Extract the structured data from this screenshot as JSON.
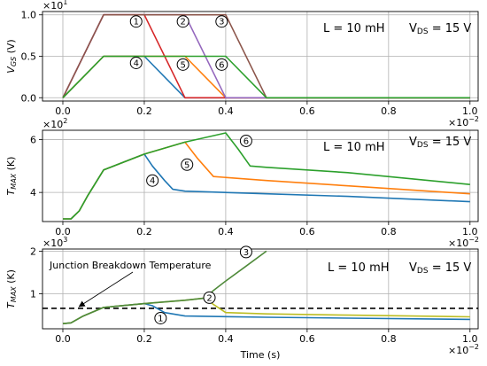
{
  "chart_data": [
    {
      "type": "line",
      "xlim": [
        -0.05,
        1.02
      ],
      "ylim": [
        -0.4,
        10.4
      ],
      "x_ticks": [
        0.0,
        0.2,
        0.4,
        0.6,
        0.8,
        1.0
      ],
      "x_tick_labels": [
        "0.0",
        "0.2",
        "0.4",
        "0.6",
        "0.8",
        "1.0"
      ],
      "x_exponent": "×10−2",
      "y_ticks": [
        0,
        5,
        10
      ],
      "y_tick_labels": [
        "0.0",
        "0.5",
        "1.0"
      ],
      "y_exponent": "×101",
      "ylabel_main": "V",
      "ylabel_sub": "GS",
      "ylabel_unit": " (V)",
      "grid": true,
      "annotations": [
        {
          "text": "L = 10 mH"
        },
        {
          "text_main": "V",
          "text_sub": "DS",
          "text_rest": " = 15 V"
        }
      ],
      "markers": [
        {
          "label": "1",
          "x": 0.18,
          "y": 9.2
        },
        {
          "label": "2",
          "x": 0.295,
          "y": 9.2
        },
        {
          "label": "3",
          "x": 0.39,
          "y": 9.2
        },
        {
          "label": "4",
          "x": 0.18,
          "y": 4.2
        },
        {
          "label": "5",
          "x": 0.295,
          "y": 4.0
        },
        {
          "label": "6",
          "x": 0.39,
          "y": 4.0
        }
      ],
      "series": [
        {
          "color": "#1f77b4",
          "x": [
            0,
            0.1,
            0.2,
            0.3,
            1.0
          ],
          "y": [
            0,
            5,
            5,
            0,
            0
          ]
        },
        {
          "color": "#ff7f0e",
          "x": [
            0,
            0.1,
            0.3,
            0.4,
            1.0
          ],
          "y": [
            0,
            5,
            5,
            0,
            0
          ]
        },
        {
          "color": "#d62728",
          "x": [
            0,
            0.1,
            0.2,
            0.3,
            1.0
          ],
          "y": [
            0,
            10,
            10,
            0,
            0
          ]
        },
        {
          "color": "#9467bd",
          "x": [
            0,
            0.1,
            0.3,
            0.4,
            1.0
          ],
          "y": [
            0,
            10,
            10,
            0,
            0
          ]
        },
        {
          "color": "#8c564b",
          "x": [
            0,
            0.1,
            0.4,
            0.5,
            1.0
          ],
          "y": [
            0,
            10,
            10,
            0,
            0
          ]
        },
        {
          "color": "#2ca02c",
          "x": [
            0,
            0.1,
            0.4,
            0.5,
            1.0
          ],
          "y": [
            0,
            5,
            5,
            0,
            0
          ]
        }
      ]
    },
    {
      "type": "line",
      "xlim": [
        -0.05,
        1.02
      ],
      "ylim": [
        2.9,
        6.35
      ],
      "x_ticks": [
        0.0,
        0.2,
        0.4,
        0.6,
        0.8,
        1.0
      ],
      "x_tick_labels": [
        "0.0",
        "0.2",
        "0.4",
        "0.6",
        "0.8",
        "1.0"
      ],
      "x_exponent": "×10−2",
      "y_ticks": [
        4,
        6
      ],
      "y_tick_labels": [
        "4",
        "6"
      ],
      "y_exponent": "×102",
      "ylabel_main": "T",
      "ylabel_sub": "MAX",
      "ylabel_unit": " (K)",
      "grid": true,
      "annotations": [
        {
          "text": "L = 10 mH"
        },
        {
          "text_main": "V",
          "text_sub": "DS",
          "text_rest": " = 15 V"
        }
      ],
      "markers": [
        {
          "label": "4",
          "x": 0.22,
          "y": 4.45
        },
        {
          "label": "5",
          "x": 0.305,
          "y": 5.05
        },
        {
          "label": "6",
          "x": 0.45,
          "y": 5.95
        }
      ],
      "series": [
        {
          "color": "#1f77b4",
          "x": [
            0,
            0.02,
            0.04,
            0.06,
            0.08,
            0.1,
            0.15,
            0.2,
            0.22,
            0.25,
            0.27,
            0.3,
            0.5,
            0.7,
            1.0
          ],
          "y": [
            3.0,
            3.0,
            3.3,
            3.85,
            4.35,
            4.85,
            5.15,
            5.45,
            5.0,
            4.45,
            4.12,
            4.05,
            3.95,
            3.85,
            3.65
          ]
        },
        {
          "color": "#ff7f0e",
          "x": [
            0,
            0.02,
            0.04,
            0.06,
            0.08,
            0.1,
            0.2,
            0.3,
            0.33,
            0.37,
            0.5,
            0.7,
            1.0
          ],
          "y": [
            3.0,
            3.0,
            3.3,
            3.85,
            4.35,
            4.85,
            5.45,
            5.9,
            5.3,
            4.6,
            4.45,
            4.25,
            3.95
          ]
        },
        {
          "color": "#2ca02c",
          "x": [
            0,
            0.02,
            0.04,
            0.06,
            0.08,
            0.1,
            0.2,
            0.3,
            0.4,
            0.43,
            0.46,
            0.5,
            0.7,
            1.0
          ],
          "y": [
            3.0,
            3.0,
            3.3,
            3.85,
            4.35,
            4.85,
            5.45,
            5.9,
            6.25,
            5.65,
            5.0,
            4.95,
            4.75,
            4.3
          ]
        }
      ]
    },
    {
      "type": "line",
      "xlim": [
        -0.05,
        1.02
      ],
      "ylim": [
        0.18,
        2.05
      ],
      "x_ticks": [
        0.0,
        0.2,
        0.4,
        0.6,
        0.8,
        1.0
      ],
      "x_tick_labels": [
        "0.0",
        "0.2",
        "0.4",
        "0.6",
        "0.8",
        "1.0"
      ],
      "x_exponent": "×10−2",
      "y_ticks": [
        1,
        2
      ],
      "y_tick_labels": [
        "1",
        "2"
      ],
      "y_exponent": "×103",
      "ylabel_main": "T",
      "ylabel_sub": "MAX",
      "ylabel_unit": " (K)",
      "xlabel": "Time (s)",
      "grid": true,
      "hline": {
        "y": 0.66,
        "color": "#000000"
      },
      "annotations": [
        {
          "text": "L = 10 mH"
        },
        {
          "text_main": "V",
          "text_sub": "DS",
          "text_rest": " = 15 V"
        },
        {
          "text": "Junction Breakdown Temperature"
        }
      ],
      "markers": [
        {
          "label": "1",
          "x": 0.24,
          "y": 0.43
        },
        {
          "label": "2",
          "x": 0.36,
          "y": 0.91
        },
        {
          "label": "3",
          "x": 0.45,
          "y": 1.98
        }
      ],
      "series": [
        {
          "color": "#1f77b4",
          "x": [
            0,
            0.02,
            0.05,
            0.1,
            0.2,
            0.22,
            0.25,
            0.3,
            0.5,
            0.7,
            1.0
          ],
          "y": [
            0.3,
            0.32,
            0.48,
            0.68,
            0.77,
            0.72,
            0.56,
            0.48,
            0.45,
            0.43,
            0.4
          ]
        },
        {
          "color": "#bcbd22",
          "x": [
            0,
            0.02,
            0.05,
            0.1,
            0.2,
            0.3,
            0.35,
            0.37,
            0.4,
            0.5,
            0.7,
            1.0
          ],
          "y": [
            0.3,
            0.32,
            0.48,
            0.68,
            0.77,
            0.85,
            0.9,
            0.75,
            0.56,
            0.53,
            0.5,
            0.46
          ]
        },
        {
          "color": "#4f8a3a",
          "x": [
            0,
            0.02,
            0.05,
            0.1,
            0.2,
            0.3,
            0.35,
            0.37,
            0.4,
            0.45,
            0.5
          ],
          "y": [
            0.3,
            0.32,
            0.48,
            0.68,
            0.77,
            0.85,
            0.9,
            1.08,
            1.3,
            1.65,
            2.0
          ]
        }
      ]
    }
  ]
}
